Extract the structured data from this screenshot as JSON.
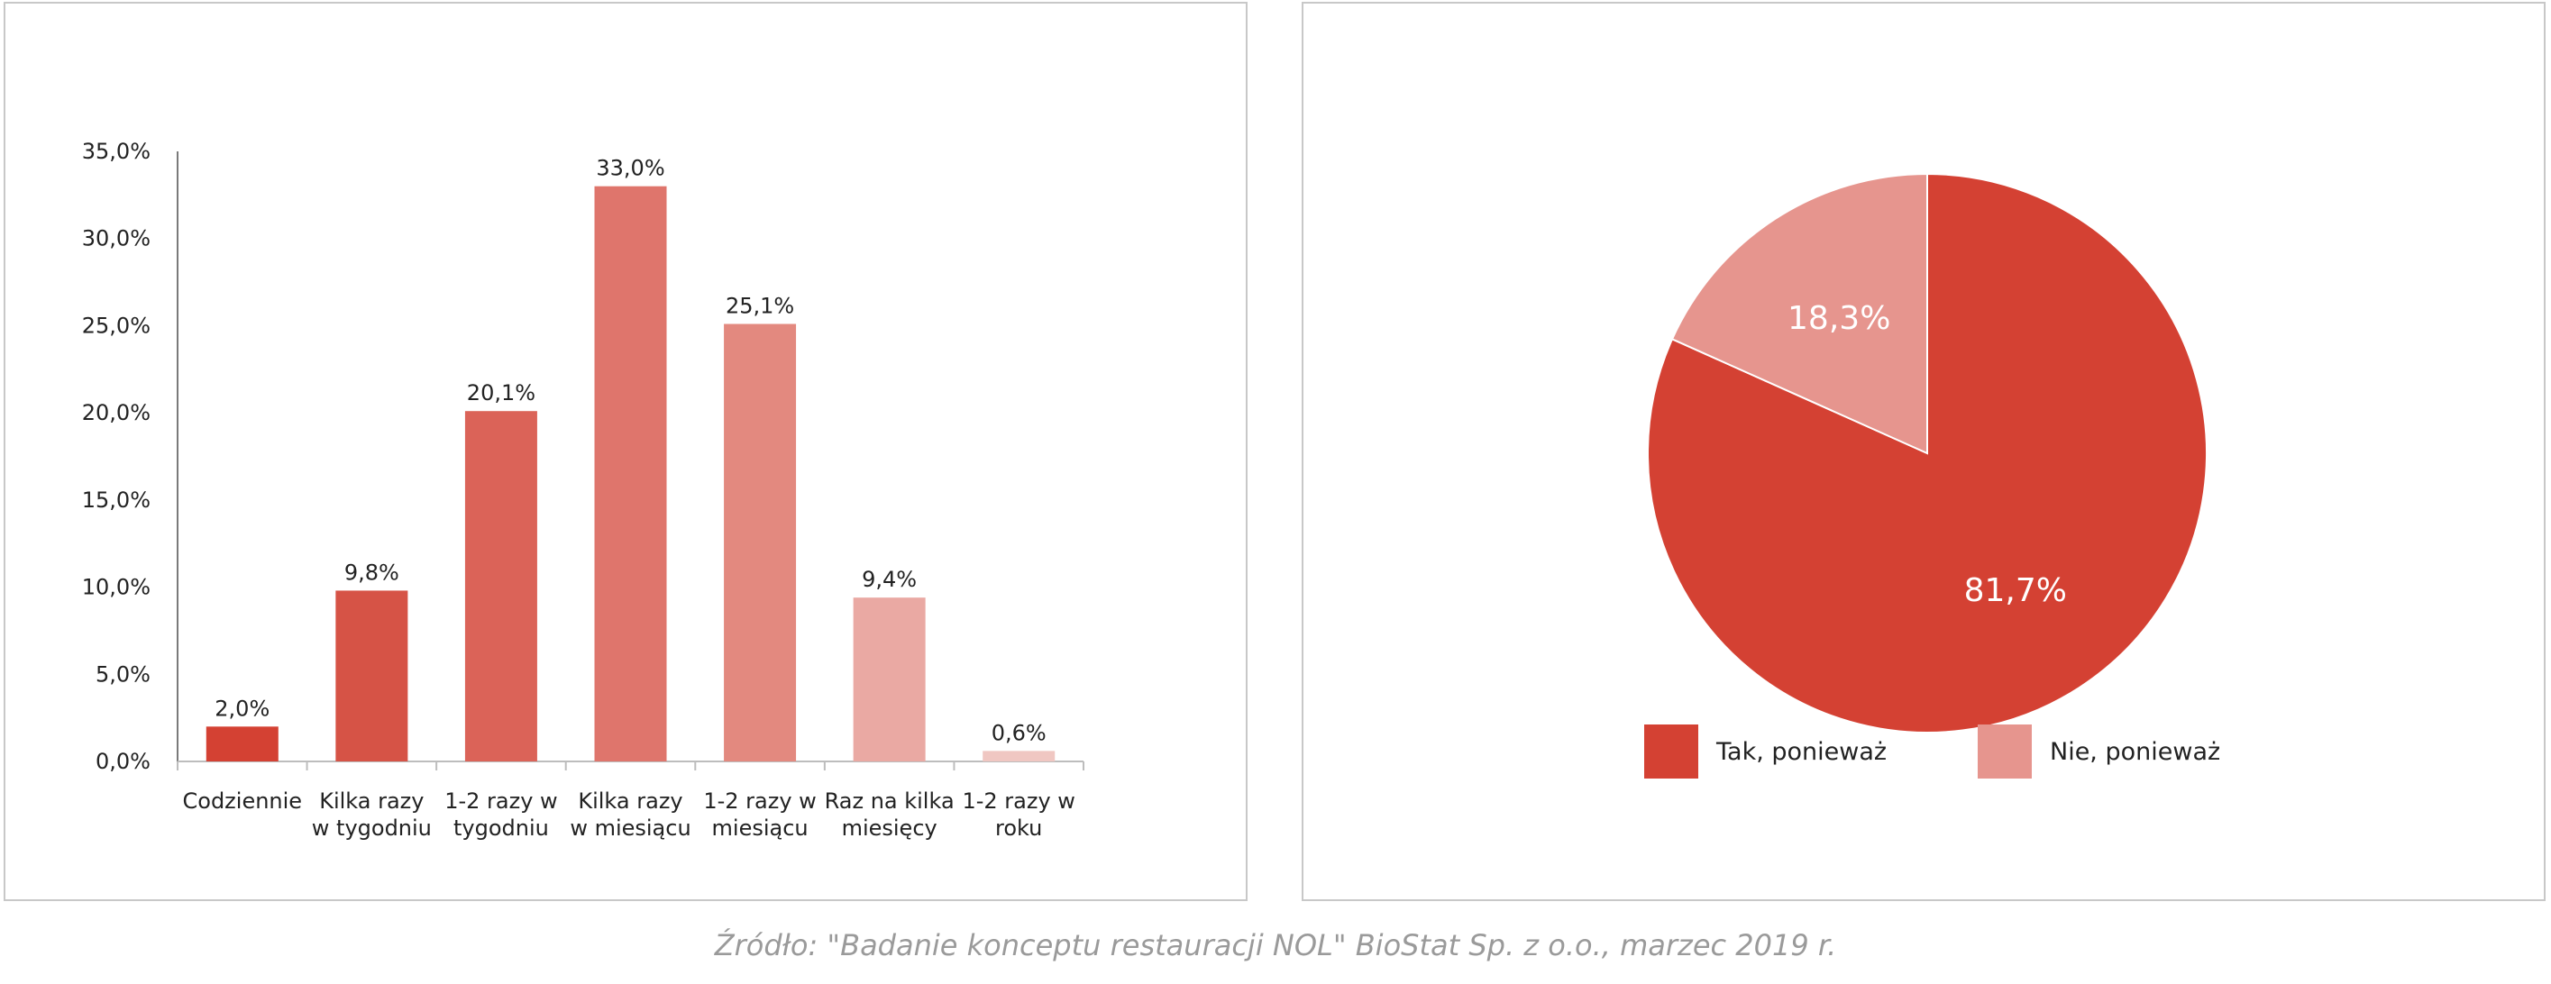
{
  "chart_data": [
    {
      "type": "bar",
      "categories": [
        [
          "Codziennie"
        ],
        [
          "Kilka razy",
          "w tygodniu"
        ],
        [
          "1-2 razy w",
          "tygodniu"
        ],
        [
          "Kilka razy",
          "w miesiącu"
        ],
        [
          "1-2 razy w",
          "miesiącu"
        ],
        [
          "Raz na kilka",
          "miesięcy"
        ],
        [
          "1-2 razy w",
          "roku"
        ]
      ],
      "values": [
        2.0,
        9.8,
        20.1,
        33.0,
        25.1,
        9.4,
        0.6
      ],
      "value_labels": [
        "2,0%",
        "9,8%",
        "20,1%",
        "33,0%",
        "25,1%",
        "9,4%",
        "0,6%"
      ],
      "bar_colors": [
        "#d44133",
        "#d65346",
        "#db6358",
        "#df756c",
        "#e3897f",
        "#eaa9a3",
        "#f0c7c2"
      ],
      "ylim": [
        0,
        35
      ],
      "yticks": [
        0,
        5,
        10,
        15,
        20,
        25,
        30,
        35
      ],
      "ytick_labels": [
        "0,0%",
        "5,0%",
        "10,0%",
        "15,0%",
        "20,0%",
        "25,0%",
        "30,0%",
        "35,0%"
      ],
      "grid": false,
      "title": "",
      "xlabel": "",
      "ylabel": ""
    },
    {
      "type": "pie",
      "slices": [
        {
          "name": "Tak, ponieważ",
          "value": 81.7,
          "label": "81,7%",
          "color": "#d44133"
        },
        {
          "name": "Nie, ponieważ",
          "value": 18.3,
          "label": "18,3%",
          "color": "#e6958e"
        }
      ],
      "start": "top, clockwise",
      "legend_position": "bottom"
    }
  ],
  "source": "Źródło: \"Badanie konceptu restauracji NOL\" BioStat Sp. z o.o., marzec 2019 r."
}
